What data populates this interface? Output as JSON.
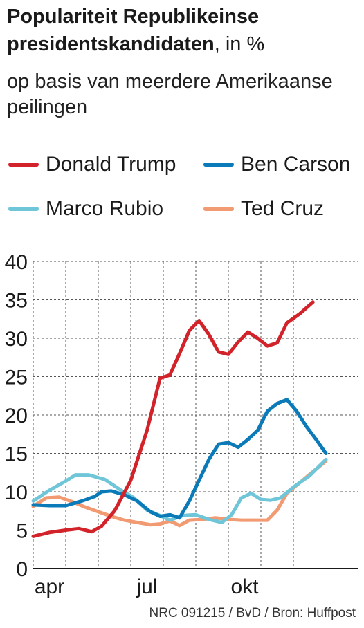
{
  "title": {
    "bold": "Populariteit Republikeinse presidentskandidaten",
    "unit": ", in %"
  },
  "subtitle": "op basis van meerdere Amerikaanse peilingen",
  "source": "NRC 091215 / BvD / Bron: Huffpost",
  "legend": [
    {
      "label": "Donald Trump",
      "color": "#d2232a"
    },
    {
      "label": "Ben Carson",
      "color": "#0a7ab8"
    },
    {
      "label": "Marco Rubio",
      "color": "#6fc6d8"
    },
    {
      "label": "Ted Cruz",
      "color": "#f29a72"
    }
  ],
  "chart_data": {
    "type": "line",
    "ylim": [
      0,
      40
    ],
    "yticks": [
      "0",
      "5",
      "10",
      "15",
      "20",
      "25",
      "30",
      "35",
      "40"
    ],
    "xlim": [
      0,
      10
    ],
    "xticks": [
      {
        "label": "apr",
        "x": 0.5
      },
      {
        "label": "jul",
        "x": 3.5
      },
      {
        "label": "okt",
        "x": 6.5
      }
    ],
    "x_gridlines": [
      0,
      1,
      2,
      3,
      4,
      5,
      6,
      7,
      8
    ],
    "grid": true,
    "series": [
      {
        "name": "Donald Trump",
        "color": "#d2232a",
        "points": [
          [
            0,
            4.2
          ],
          [
            0.5,
            4.7
          ],
          [
            1,
            5.0
          ],
          [
            1.4,
            5.2
          ],
          [
            1.8,
            4.8
          ],
          [
            2.1,
            5.5
          ],
          [
            2.5,
            7.5
          ],
          [
            3.0,
            11.5
          ],
          [
            3.5,
            18
          ],
          [
            3.9,
            24.8
          ],
          [
            4.2,
            25.2
          ],
          [
            4.5,
            28
          ],
          [
            4.8,
            31
          ],
          [
            5.1,
            32.3
          ],
          [
            5.4,
            30.5
          ],
          [
            5.7,
            28.2
          ],
          [
            6.0,
            27.9
          ],
          [
            6.3,
            29.5
          ],
          [
            6.6,
            30.8
          ],
          [
            6.9,
            30.0
          ],
          [
            7.2,
            29.0
          ],
          [
            7.5,
            29.4
          ],
          [
            7.8,
            32
          ],
          [
            8.2,
            33.2
          ],
          [
            8.6,
            34.7
          ]
        ]
      },
      {
        "name": "Ben Carson",
        "color": "#0a7ab8",
        "points": [
          [
            0,
            8.3
          ],
          [
            0.5,
            8.2
          ],
          [
            1,
            8.2
          ],
          [
            1.5,
            8.8
          ],
          [
            1.9,
            9.4
          ],
          [
            2.1,
            10.0
          ],
          [
            2.4,
            10.1
          ],
          [
            2.8,
            9.6
          ],
          [
            3.2,
            8.8
          ],
          [
            3.6,
            7.4
          ],
          [
            3.9,
            6.8
          ],
          [
            4.2,
            7.0
          ],
          [
            4.5,
            6.6
          ],
          [
            4.8,
            8.8
          ],
          [
            5.1,
            11.5
          ],
          [
            5.4,
            14.2
          ],
          [
            5.7,
            16.2
          ],
          [
            6.0,
            16.4
          ],
          [
            6.3,
            15.8
          ],
          [
            6.6,
            16.8
          ],
          [
            6.9,
            18.0
          ],
          [
            7.2,
            20.5
          ],
          [
            7.5,
            21.5
          ],
          [
            7.8,
            22.0
          ],
          [
            8.1,
            20.5
          ],
          [
            8.4,
            18.5
          ],
          [
            8.7,
            16.8
          ],
          [
            9.0,
            15.0
          ]
        ]
      },
      {
        "name": "Marco Rubio",
        "color": "#6fc6d8",
        "points": [
          [
            0,
            8.8
          ],
          [
            0.5,
            10.2
          ],
          [
            1,
            11.4
          ],
          [
            1.3,
            12.2
          ],
          [
            1.7,
            12.2
          ],
          [
            2.2,
            11.6
          ],
          [
            2.7,
            10.2
          ],
          [
            3.1,
            9.2
          ],
          [
            3.5,
            7.6
          ],
          [
            3.9,
            6.9
          ],
          [
            4.2,
            6.3
          ],
          [
            4.6,
            6.9
          ],
          [
            5.0,
            7.0
          ],
          [
            5.4,
            6.4
          ],
          [
            5.8,
            6.0
          ],
          [
            6.1,
            7.0
          ],
          [
            6.4,
            9.2
          ],
          [
            6.7,
            9.8
          ],
          [
            7.0,
            9.0
          ],
          [
            7.3,
            8.9
          ],
          [
            7.6,
            9.2
          ],
          [
            8.0,
            10.6
          ],
          [
            8.5,
            12.1
          ],
          [
            9.0,
            14.2
          ]
        ]
      },
      {
        "name": "Ted Cruz",
        "color": "#f29a72",
        "points": [
          [
            0,
            8.1
          ],
          [
            0.4,
            9.2
          ],
          [
            0.8,
            9.3
          ],
          [
            1.2,
            8.7
          ],
          [
            1.6,
            8.0
          ],
          [
            2.0,
            7.4
          ],
          [
            2.4,
            6.8
          ],
          [
            2.8,
            6.3
          ],
          [
            3.2,
            6.0
          ],
          [
            3.6,
            5.7
          ],
          [
            3.9,
            5.8
          ],
          [
            4.2,
            6.2
          ],
          [
            4.5,
            5.6
          ],
          [
            4.8,
            6.3
          ],
          [
            5.2,
            6.4
          ],
          [
            5.6,
            6.6
          ],
          [
            6.0,
            6.4
          ],
          [
            6.4,
            6.3
          ],
          [
            6.8,
            6.3
          ],
          [
            7.2,
            6.3
          ],
          [
            7.5,
            7.6
          ],
          [
            7.8,
            9.8
          ],
          [
            8.2,
            11.2
          ],
          [
            8.6,
            12.6
          ],
          [
            9.0,
            14.0
          ]
        ]
      }
    ]
  }
}
